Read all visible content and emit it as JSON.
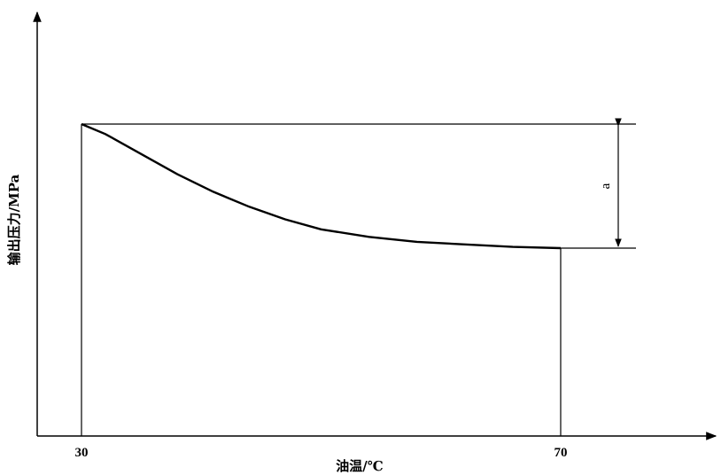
{
  "chart_data": {
    "type": "line",
    "xlabel": "油温/℃",
    "ylabel": "输出压力/MPa",
    "x_ticks": [
      "30",
      "70"
    ],
    "x_start": 30,
    "x_end": 70,
    "series": [
      {
        "x": [
          30,
          32,
          35,
          38,
          41,
          44,
          47,
          50,
          54,
          58,
          62,
          66,
          70
        ],
        "y": [
          1.0,
          0.96,
          0.88,
          0.8,
          0.73,
          0.67,
          0.62,
          0.58,
          0.55,
          0.53,
          0.52,
          0.51,
          0.505
        ]
      }
    ],
    "annotations": [
      {
        "label": "a"
      }
    ],
    "grid": false
  }
}
